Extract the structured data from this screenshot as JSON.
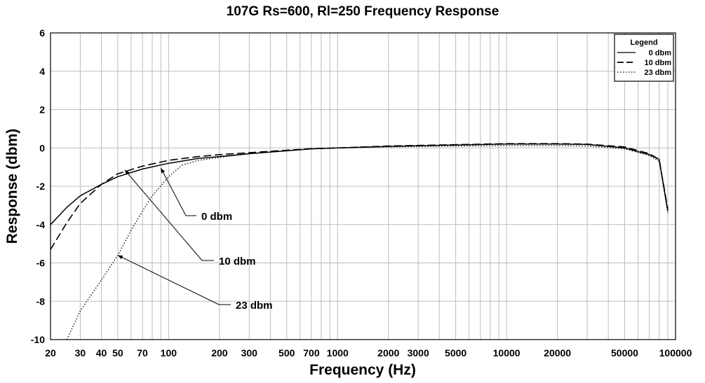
{
  "chart_data": {
    "type": "line",
    "title": "107G Rs=600, Rl=250 Frequency Response",
    "xlabel": "Frequency (Hz)",
    "ylabel": "Response (dbm)",
    "xscale": "log",
    "xlim": [
      20,
      100000
    ],
    "ylim": [
      -10,
      6
    ],
    "grid": true,
    "x_ticks": [
      {
        "value": 20,
        "label": "20"
      },
      {
        "value": 30,
        "label": "30"
      },
      {
        "value": 40,
        "label": "40"
      },
      {
        "value": 50,
        "label": "50"
      },
      {
        "value": 70,
        "label": "70"
      },
      {
        "value": 100,
        "label": "100"
      },
      {
        "value": 200,
        "label": "200"
      },
      {
        "value": 300,
        "label": "300"
      },
      {
        "value": 500,
        "label": "500"
      },
      {
        "value": 700,
        "label": "700"
      },
      {
        "value": 1000,
        "label": "1000"
      },
      {
        "value": 2000,
        "label": "2000"
      },
      {
        "value": 3000,
        "label": "3000"
      },
      {
        "value": 5000,
        "label": "5000"
      },
      {
        "value": 10000,
        "label": "10000"
      },
      {
        "value": 20000,
        "label": "20000"
      },
      {
        "value": 50000,
        "label": "50000"
      },
      {
        "value": 100000,
        "label": "100000"
      }
    ],
    "y_ticks": [
      {
        "value": 6,
        "label": "6"
      },
      {
        "value": 4,
        "label": "4"
      },
      {
        "value": 2,
        "label": "2"
      },
      {
        "value": 0,
        "label": "0"
      },
      {
        "value": -2,
        "label": "-2"
      },
      {
        "value": -4,
        "label": "-4"
      },
      {
        "value": -6,
        "label": "-6"
      },
      {
        "value": -8,
        "label": "-8"
      },
      {
        "value": -10,
        "label": "-10"
      }
    ],
    "legend": {
      "title": "Legend",
      "position": "top-right",
      "entries": [
        "0 dbm",
        "10 dbm",
        "23 dbm"
      ]
    },
    "series": [
      {
        "name": "0 dbm",
        "style": "solid",
        "x": [
          20,
          25,
          30,
          40,
          50,
          70,
          100,
          150,
          200,
          300,
          500,
          700,
          1000,
          2000,
          5000,
          10000,
          20000,
          30000,
          50000,
          70000,
          80000,
          90000
        ],
        "y": [
          -4.0,
          -3.1,
          -2.5,
          -1.9,
          -1.5,
          -1.1,
          -0.8,
          -0.55,
          -0.45,
          -0.3,
          -0.15,
          -0.05,
          0.0,
          0.08,
          0.15,
          0.2,
          0.2,
          0.18,
          0.0,
          -0.35,
          -0.6,
          -3.3
        ]
      },
      {
        "name": "10 dbm",
        "style": "dashed",
        "x": [
          20,
          25,
          30,
          40,
          50,
          70,
          100,
          150,
          200,
          300,
          500,
          700,
          1000,
          2000,
          5000,
          10000,
          20000,
          30000,
          50000,
          70000,
          80000,
          90000
        ],
        "y": [
          -5.3,
          -3.9,
          -2.9,
          -1.9,
          -1.35,
          -0.95,
          -0.65,
          -0.45,
          -0.35,
          -0.25,
          -0.12,
          -0.04,
          0.0,
          0.1,
          0.17,
          0.22,
          0.22,
          0.2,
          0.05,
          -0.3,
          -0.6,
          -3.2
        ]
      },
      {
        "name": "23 dbm",
        "style": "dotted",
        "x": [
          25,
          30,
          40,
          50,
          60,
          70,
          80,
          100,
          120,
          150,
          200,
          300,
          500,
          700,
          1000,
          2000,
          5000,
          10000,
          20000,
          30000,
          50000,
          70000,
          80000,
          90000
        ],
        "y": [
          -10.0,
          -8.5,
          -6.9,
          -5.6,
          -4.3,
          -3.3,
          -2.5,
          -1.5,
          -0.9,
          -0.65,
          -0.5,
          -0.3,
          -0.15,
          -0.05,
          0.0,
          0.05,
          0.1,
          0.12,
          0.12,
          0.1,
          -0.05,
          -0.4,
          -0.7,
          -3.4
        ]
      }
    ],
    "annotations": [
      {
        "text": "0 dbm",
        "series": "0 dbm",
        "point_x": 90,
        "point_y": -1.05
      },
      {
        "text": "10 dbm",
        "series": "10 dbm",
        "point_x": 55,
        "point_y": -1.15
      },
      {
        "text": "23 dbm",
        "series": "23 dbm",
        "point_x": 50,
        "point_y": -5.6
      }
    ]
  }
}
